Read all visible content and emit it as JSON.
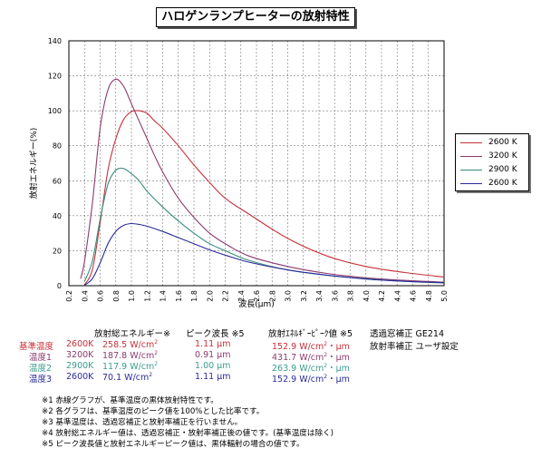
{
  "chart_data": {
    "type": "line",
    "title": "ハロゲンランプヒーターの放射特性",
    "xlabel": "波長(μm)",
    "ylabel": "放射エネルギー(%)",
    "xlim": [
      0.2,
      5.0
    ],
    "ylim": [
      0,
      140
    ],
    "x_ticks": [
      "0.2",
      "0.4",
      "0.6",
      "0.8",
      "1.0",
      "1.2",
      "1.4",
      "1.6",
      "1.8",
      "2.0",
      "2.2",
      "2.4",
      "2.6",
      "2.8",
      "3.0",
      "3.2",
      "3.4",
      "3.6",
      "3.8",
      "4.0",
      "4.2",
      "4.4",
      "4.6",
      "4.8",
      "5.0"
    ],
    "y_ticks": [
      "0",
      "20",
      "40",
      "60",
      "80",
      "100",
      "120",
      "140"
    ],
    "grid": true,
    "legend_position": "right",
    "series": [
      {
        "name": "2600 K",
        "color": "#c8303a",
        "x": [
          0.4,
          0.5,
          0.6,
          0.7,
          0.8,
          0.9,
          1.0,
          1.1,
          1.2,
          1.3,
          1.4,
          1.6,
          1.8,
          2.0,
          2.2,
          2.5,
          3.0,
          3.5,
          4.0,
          4.5,
          5.0
        ],
        "values": [
          0.5,
          9,
          36,
          66,
          84,
          95,
          99.5,
          100,
          98.5,
          94,
          90,
          80,
          69,
          59,
          50,
          41,
          27,
          17,
          11,
          7.5,
          5
        ]
      },
      {
        "name": "3200 K",
        "color": "#8c3a6e",
        "x": [
          0.35,
          0.4,
          0.5,
          0.6,
          0.7,
          0.8,
          0.9,
          1.0,
          1.1,
          1.2,
          1.3,
          1.4,
          1.6,
          1.8,
          2.0,
          2.2,
          2.5,
          3.0,
          3.5,
          4.0,
          4.5,
          5.0
        ],
        "values": [
          4,
          14,
          47,
          90,
          112,
          118,
          114,
          104,
          94,
          84,
          74,
          65,
          50,
          39,
          30,
          24,
          17,
          11,
          7,
          4.5,
          3,
          2
        ]
      },
      {
        "name": "2900 K",
        "color": "#3a8c7e",
        "x": [
          0.4,
          0.5,
          0.6,
          0.7,
          0.8,
          0.9,
          1.0,
          1.1,
          1.2,
          1.4,
          1.6,
          1.8,
          2.0,
          2.2,
          2.5,
          3.0,
          3.5,
          4.0,
          4.5,
          5.0
        ],
        "values": [
          2.5,
          14,
          38,
          58,
          66,
          67,
          64,
          60,
          54,
          45,
          37,
          30,
          24,
          20,
          14.5,
          9,
          6,
          4,
          2.5,
          1.5
        ]
      },
      {
        "name": "2600 K",
        "color": "#2a2a9a",
        "x": [
          0.4,
          0.5,
          0.6,
          0.7,
          0.8,
          0.9,
          1.0,
          1.1,
          1.2,
          1.4,
          1.6,
          1.8,
          2.0,
          2.2,
          2.5,
          3.0,
          3.5,
          4.0,
          4.5,
          5.0
        ],
        "values": [
          0.3,
          4,
          13,
          24,
          31,
          34.5,
          35.5,
          35,
          34,
          31,
          27.5,
          24,
          20.5,
          17.5,
          13.5,
          9,
          6,
          3.8,
          2.5,
          1.7
        ]
      }
    ]
  },
  "table": {
    "headers": [
      "放射総エネルギー※",
      "ピーク波長 ※5",
      "放射ｴﾈﾙｷﾞｰﾋﾟｰｸ値 ※5"
    ],
    "rows": [
      {
        "label": "基準温度",
        "temp": "2600K",
        "energy": "258.5 W/cm",
        "energy_sup": "2",
        "peak": "1.11  μm",
        "peak_value": "152.9 W/cm",
        "peak_sup": "2",
        "peak_unit": "・μm",
        "color": "#c8303a"
      },
      {
        "label": "温度1",
        "temp": "3200K",
        "energy": "187.8 W/cm",
        "energy_sup": "2",
        "peak": "0.91  μm",
        "peak_value": "431.7 W/cm",
        "peak_sup": "2",
        "peak_unit": "・μm",
        "color": "#8c3a6e"
      },
      {
        "label": "温度2",
        "temp": "2900K",
        "energy": "117.9 W/cm",
        "energy_sup": "2",
        "peak": "1.00  μm",
        "peak_value": "263.9 W/cm",
        "peak_sup": "2",
        "peak_unit": "・μm",
        "color": "#3a9c8e"
      },
      {
        "label": "温度3",
        "temp": "2600K",
        "energy": "70.1 W/cm",
        "energy_sup": "2",
        "peak": "1.11  μm",
        "peak_value": "152.9 W/cm",
        "peak_sup": "2",
        "peak_unit": "・μm",
        "color": "#2a2a9a"
      }
    ]
  },
  "settings": {
    "window_correction": "透過窓補正 GE214",
    "emissivity_correction": "放射率補正 ユーザ設定"
  },
  "notes": [
    "※1 赤線グラフが、基準温度の黒体放射特性です。",
    "※2 各グラフは、基準温度のピーク値を100%とした比率です。",
    "※3 基準温度は、透過窓補正と放射率補正を行いません。",
    "※4 放射総エネルギー値は、透過窓補正・放射率補正後の値です。(基準温度は除く)",
    "※5 ピーク波長値と放射エネルギーピーク値は、黒体輻射の場合の値です。"
  ]
}
